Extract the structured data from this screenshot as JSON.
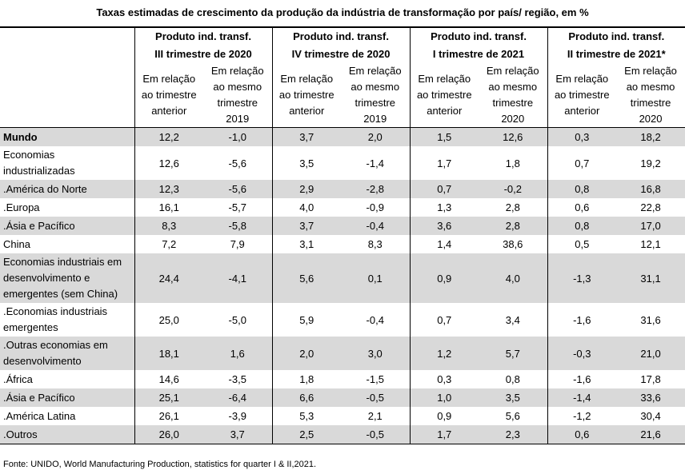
{
  "title": "Taxas estimadas de crescimento da produção da indústria de transformação por país/ região, em %",
  "chart_data": {
    "type": "table",
    "groups": [
      {
        "line1": "Produto ind. transf.",
        "line2": "III trimestre de 2020",
        "sub": [
          [
            "Em relação",
            "ao trimestre",
            "anterior"
          ],
          [
            "Em relação",
            "ao mesmo",
            "trimestre",
            "2019"
          ]
        ]
      },
      {
        "line1": "Produto ind. transf.",
        "line2": "IV trimestre de 2020",
        "sub": [
          [
            "Em relação",
            "ao trimestre",
            "anterior"
          ],
          [
            "Em relação",
            "ao mesmo",
            "trimestre",
            "2019"
          ]
        ]
      },
      {
        "line1": "Produto ind. transf.",
        "line2": "I trimestre de 2021",
        "sub": [
          [
            "Em relação",
            "ao trimestre",
            "anterior"
          ],
          [
            "Em relação",
            "ao mesmo",
            "trimestre",
            "2020"
          ]
        ]
      },
      {
        "line1": "Produto ind. transf.",
        "line2": "II trimestre de 2021*",
        "sub": [
          [
            "Em relação",
            "ao trimestre",
            "anterior"
          ],
          [
            "Em relação",
            "ao mesmo",
            "trimestre",
            "2020"
          ]
        ]
      }
    ],
    "rows": [
      {
        "label": [
          "Mundo"
        ],
        "values": [
          "12,2",
          "-1,0",
          "3,7",
          "2,0",
          "1,5",
          "12,6",
          "0,3",
          "18,2"
        ]
      },
      {
        "label": [
          "Economias",
          "industrializadas"
        ],
        "values": [
          "12,6",
          "-5,6",
          "3,5",
          "-1,4",
          "1,7",
          "1,8",
          "0,7",
          "19,2"
        ]
      },
      {
        "label": [
          ".América do Norte"
        ],
        "values": [
          "12,3",
          "-5,6",
          "2,9",
          "-2,8",
          "0,7",
          "-0,2",
          "0,8",
          "16,8"
        ]
      },
      {
        "label": [
          ".Europa"
        ],
        "values": [
          "16,1",
          "-5,7",
          "4,0",
          "-0,9",
          "1,3",
          "2,8",
          "0,6",
          "22,8"
        ]
      },
      {
        "label": [
          ".Ásia e Pacífico"
        ],
        "values": [
          "8,3",
          "-5,8",
          "3,7",
          "-0,4",
          "3,6",
          "2,8",
          "0,8",
          "17,0"
        ]
      },
      {
        "label": [
          "China"
        ],
        "values": [
          "7,2",
          "7,9",
          "3,1",
          "8,3",
          "1,4",
          "38,6",
          "0,5",
          "12,1"
        ]
      },
      {
        "label": [
          "Economias industriais em",
          "desenvolvimento e",
          "emergentes (sem China)"
        ],
        "values": [
          "24,4",
          "-4,1",
          "5,6",
          "0,1",
          "0,9",
          "4,0",
          "-1,3",
          "31,1"
        ]
      },
      {
        "label": [
          ".Economias industriais",
          "emergentes"
        ],
        "values": [
          "25,0",
          "-5,0",
          "5,9",
          "-0,4",
          "0,7",
          "3,4",
          "-1,6",
          "31,6"
        ]
      },
      {
        "label": [
          ".Outras economias em",
          "desenvolvimento"
        ],
        "values": [
          "18,1",
          "1,6",
          "2,0",
          "3,0",
          "1,2",
          "5,7",
          "-0,3",
          "21,0"
        ]
      },
      {
        "label": [
          ".África"
        ],
        "values": [
          "14,6",
          "-3,5",
          "1,8",
          "-1,5",
          "0,3",
          "0,8",
          "-1,6",
          "17,8"
        ]
      },
      {
        "label": [
          ".Ásia e Pacífico"
        ],
        "values": [
          "25,1",
          "-6,4",
          "6,6",
          "-0,5",
          "1,0",
          "3,5",
          "-1,4",
          "33,6"
        ]
      },
      {
        "label": [
          ".América Latina"
        ],
        "values": [
          "26,1",
          "-3,9",
          "5,3",
          "2,1",
          "0,9",
          "5,6",
          "-1,2",
          "30,4"
        ]
      },
      {
        "label": [
          ".Outros"
        ],
        "values": [
          "26,0",
          "3,7",
          "2,5",
          "-0,5",
          "1,7",
          "2,3",
          "0,6",
          "21,6"
        ]
      }
    ]
  },
  "source": "Fonte: UNIDO, World Manufacturing Production, statistics for quarter I & II,2021."
}
